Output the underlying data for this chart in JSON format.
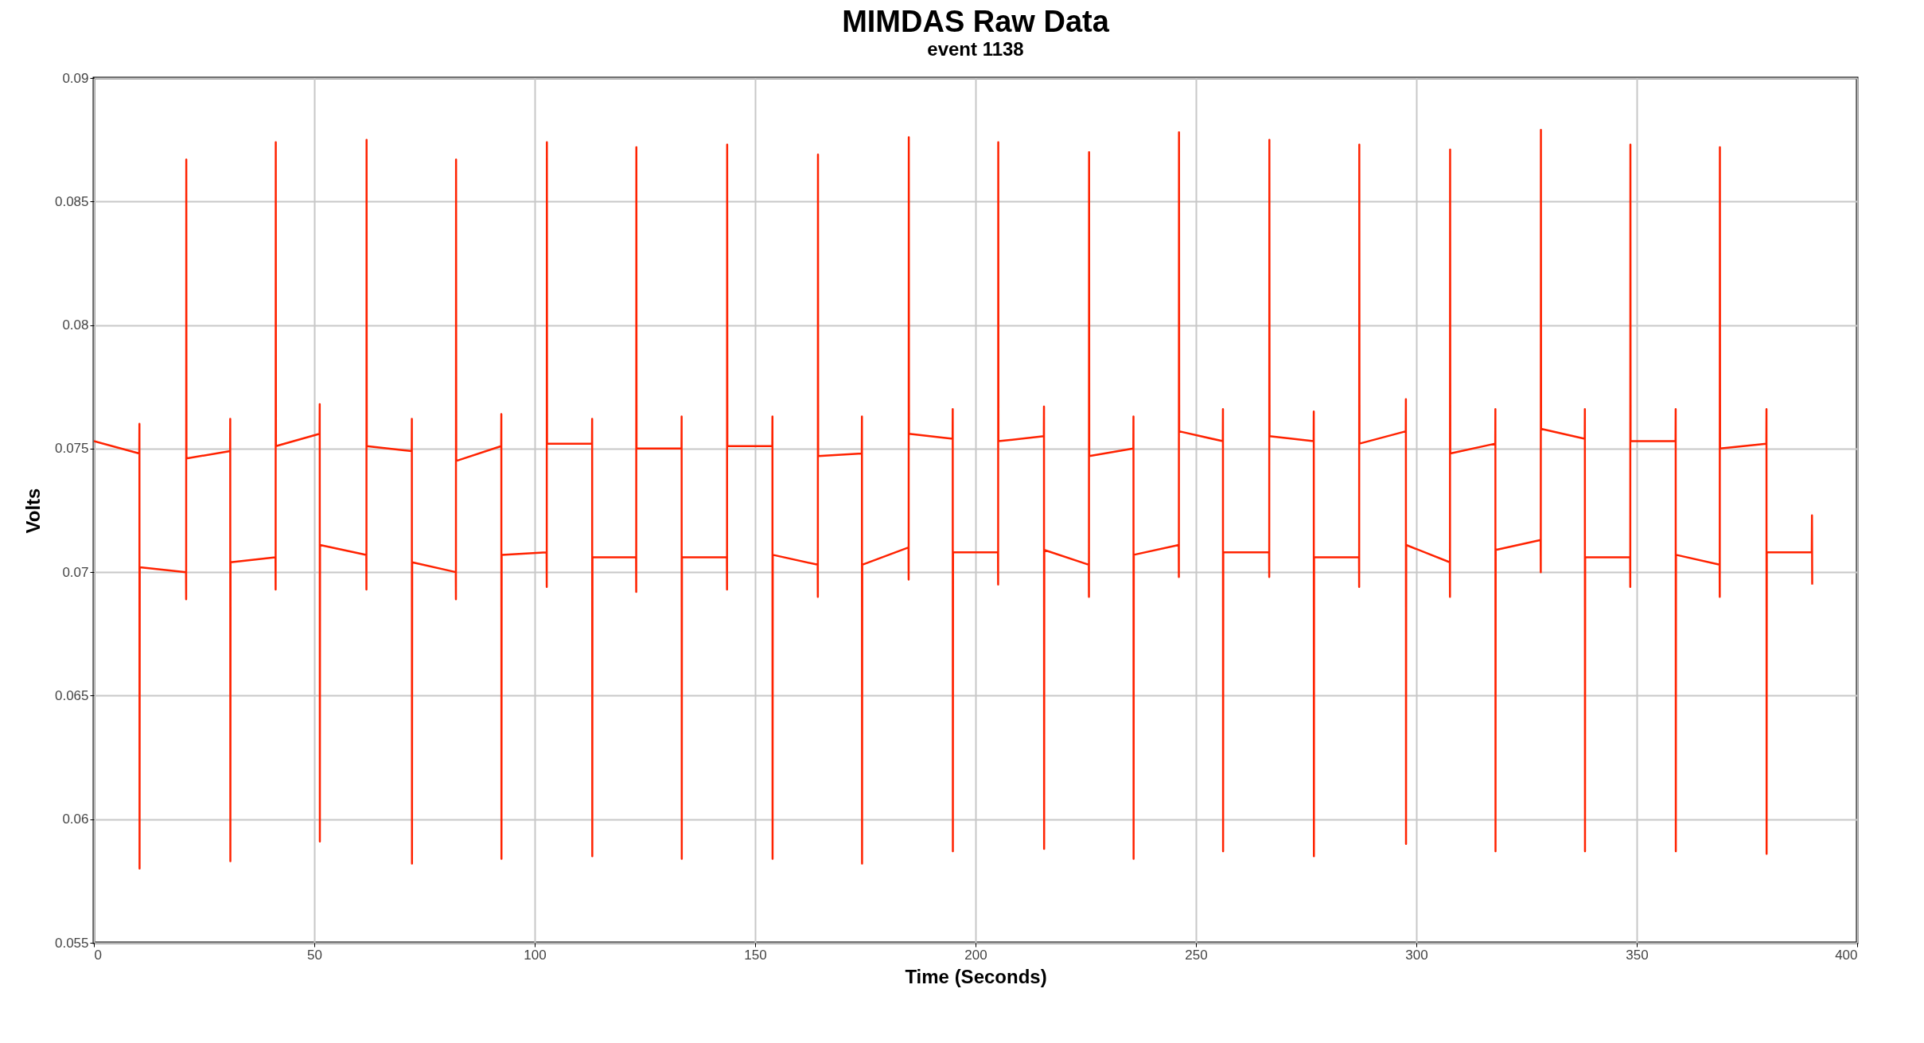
{
  "chart_data": {
    "type": "line",
    "title": "MIMDAS Raw Data",
    "subtitle": "event 1138",
    "xlabel": "Time (Seconds)",
    "ylabel": "Volts",
    "xlim": [
      0,
      400
    ],
    "xticks": [
      0,
      50,
      100,
      150,
      200,
      250,
      300,
      350,
      400
    ],
    "ylim": [
      0.055,
      0.09
    ],
    "yticks": [
      0.055,
      0.06,
      0.065,
      0.07,
      0.075,
      0.08,
      0.085,
      0.09
    ],
    "grid": true,
    "marker": "none",
    "line_style": "solid",
    "series": [
      {
        "color": "#ff2200",
        "x": [
          0,
          10.3,
          10.33,
          10.36,
          10.4,
          20.9,
          20.93,
          20.96,
          21,
          30.9,
          30.93,
          30.96,
          31,
          41.2,
          41.23,
          41.26,
          41.3,
          51.2,
          51.23,
          51.26,
          51.3,
          61.8,
          61.83,
          61.86,
          61.9,
          72.1,
          72.13,
          72.16,
          72.2,
          82.1,
          82.13,
          82.16,
          82.2,
          92.4,
          92.43,
          92.46,
          92.5,
          102.7,
          102.73,
          102.76,
          102.8,
          113,
          113.03,
          113.06,
          113.1,
          123,
          123.03,
          123.06,
          123.1,
          133.3,
          133.33,
          133.36,
          133.4,
          143.6,
          143.63,
          143.66,
          143.7,
          153.9,
          153.93,
          153.96,
          154,
          164.2,
          164.23,
          164.26,
          164.3,
          174.2,
          174.23,
          174.26,
          174.3,
          184.8,
          184.83,
          184.86,
          184.9,
          194.8,
          194.83,
          194.86,
          194.9,
          205.1,
          205.13,
          205.16,
          205.2,
          215.5,
          215.53,
          215.56,
          215.6,
          225.7,
          225.73,
          225.76,
          225.8,
          235.8,
          235.83,
          235.86,
          235.9,
          246.1,
          246.13,
          246.16,
          246.2,
          256.1,
          256.13,
          256.16,
          256.2,
          266.6,
          266.63,
          266.66,
          266.7,
          276.7,
          276.73,
          276.76,
          276.8,
          287,
          287.03,
          287.06,
          287.1,
          297.6,
          297.63,
          297.66,
          297.7,
          307.6,
          307.63,
          307.66,
          307.7,
          317.9,
          317.93,
          317.96,
          318,
          328.2,
          328.23,
          328.26,
          328.3,
          338.2,
          338.23,
          338.26,
          338.3,
          348.5,
          348.53,
          348.56,
          348.6,
          358.8,
          358.83,
          358.86,
          358.9,
          368.8,
          368.83,
          368.86,
          368.9,
          379.4,
          379.43,
          379.46,
          379.5,
          389.7,
          389.75,
          389.8
        ],
        "values": [
          0.0753,
          0.0748,
          0.076,
          0.058,
          0.0702,
          0.07,
          0.0689,
          0.0867,
          0.0746,
          0.0749,
          0.0762,
          0.0583,
          0.0704,
          0.0706,
          0.0693,
          0.0874,
          0.0751,
          0.0756,
          0.0768,
          0.0591,
          0.0711,
          0.0707,
          0.0693,
          0.0875,
          0.0751,
          0.0749,
          0.0762,
          0.0582,
          0.0704,
          0.07,
          0.0689,
          0.0867,
          0.0745,
          0.0751,
          0.0764,
          0.0584,
          0.0707,
          0.0708,
          0.0694,
          0.0874,
          0.0752,
          0.0752,
          0.0762,
          0.0585,
          0.0706,
          0.0706,
          0.0692,
          0.0872,
          0.075,
          0.075,
          0.0763,
          0.0584,
          0.0706,
          0.0706,
          0.0693,
          0.0873,
          0.0751,
          0.0751,
          0.0763,
          0.0584,
          0.0707,
          0.0703,
          0.069,
          0.0869,
          0.0747,
          0.0748,
          0.0763,
          0.0582,
          0.0703,
          0.071,
          0.0697,
          0.0876,
          0.0756,
          0.0754,
          0.0766,
          0.0587,
          0.0708,
          0.0708,
          0.0695,
          0.0874,
          0.0753,
          0.0755,
          0.0767,
          0.0588,
          0.0709,
          0.0703,
          0.069,
          0.087,
          0.0747,
          0.075,
          0.0763,
          0.0584,
          0.0707,
          0.0711,
          0.0698,
          0.0878,
          0.0757,
          0.0753,
          0.0766,
          0.0587,
          0.0708,
          0.0708,
          0.0698,
          0.0875,
          0.0755,
          0.0753,
          0.0765,
          0.0585,
          0.0706,
          0.0706,
          0.0694,
          0.0873,
          0.0752,
          0.0757,
          0.077,
          0.059,
          0.0711,
          0.0704,
          0.069,
          0.0871,
          0.0748,
          0.0752,
          0.0766,
          0.0587,
          0.0709,
          0.0713,
          0.07,
          0.0879,
          0.0758,
          0.0754,
          0.0766,
          0.0587,
          0.0706,
          0.0706,
          0.0694,
          0.0873,
          0.0753,
          0.0753,
          0.0766,
          0.0587,
          0.0707,
          0.0703,
          0.069,
          0.0872,
          0.075,
          0.0752,
          0.0766,
          0.0586,
          0.0708,
          0.0708,
          0.0723,
          0.0695
        ]
      }
    ]
  }
}
